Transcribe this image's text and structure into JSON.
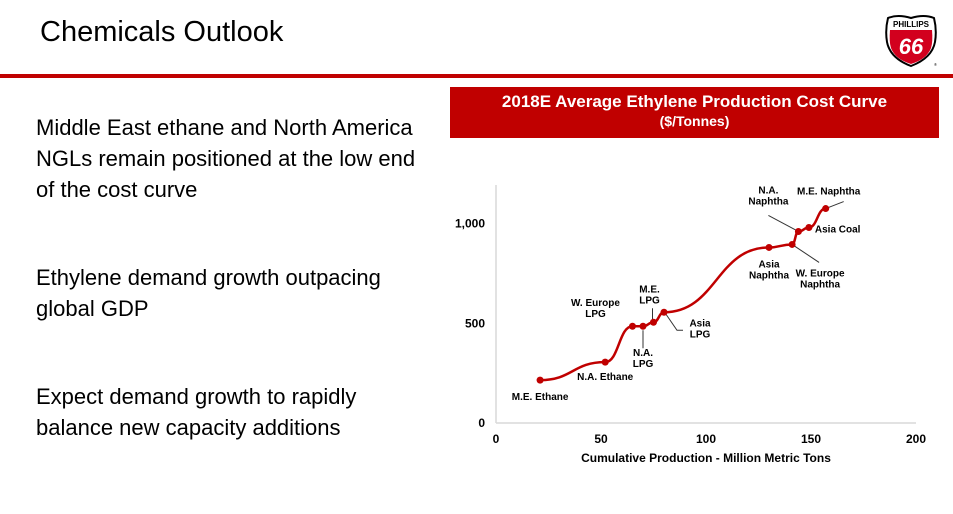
{
  "slide": {
    "title": "Chemicals Outlook",
    "logo": {
      "top_text": "PHILLIPS",
      "number": "66",
      "registered": "®"
    },
    "bullets": [
      "Middle East ethane and North America NGLs remain positioned at the low end of the cost curve",
      "Ethylene demand growth outpacing global GDP",
      "Expect demand growth to rapidly balance new capacity additions"
    ],
    "colors": {
      "accent": "#c00000",
      "line": "#c00000"
    }
  },
  "chart_data": {
    "type": "line",
    "title": "2018E Average Ethylene Production Cost Curve",
    "subtitle": "($/Tonnes)",
    "xlabel": "Cumulative Production - Million Metric Tons",
    "ylabel": "",
    "xlim": [
      0,
      200
    ],
    "ylim": [
      0,
      1200
    ],
    "xticks": [
      0,
      50,
      100,
      150,
      200
    ],
    "xtick_labels": [
      "0",
      "50",
      "100",
      "150",
      "200"
    ],
    "yticks": [
      0,
      500,
      1000
    ],
    "ytick_labels": [
      "0",
      "500",
      "1,000"
    ],
    "grid": false,
    "legend": "none",
    "series": [
      {
        "name": "Cost Curve",
        "points": [
          {
            "label": "M.E. Ethane",
            "x": 21,
            "y": 215
          },
          {
            "label": "N.A. Ethane",
            "x": 52,
            "y": 305
          },
          {
            "label": "W. Europe LPG",
            "x": 65,
            "y": 485
          },
          {
            "label": "N.A. LPG",
            "x": 70,
            "y": 485
          },
          {
            "label": "M.E. LPG",
            "x": 75,
            "y": 505
          },
          {
            "label": "Asia LPG",
            "x": 80,
            "y": 555
          },
          {
            "label": "Asia Naphtha",
            "x": 130,
            "y": 880
          },
          {
            "label": "W. Europe Naphtha",
            "x": 141,
            "y": 895
          },
          {
            "label": "N.A. Naphtha",
            "x": 144,
            "y": 960
          },
          {
            "label": "Asia Coal",
            "x": 149,
            "y": 980
          },
          {
            "label": "M.E. Naphtha",
            "x": 157,
            "y": 1075
          }
        ]
      }
    ]
  }
}
